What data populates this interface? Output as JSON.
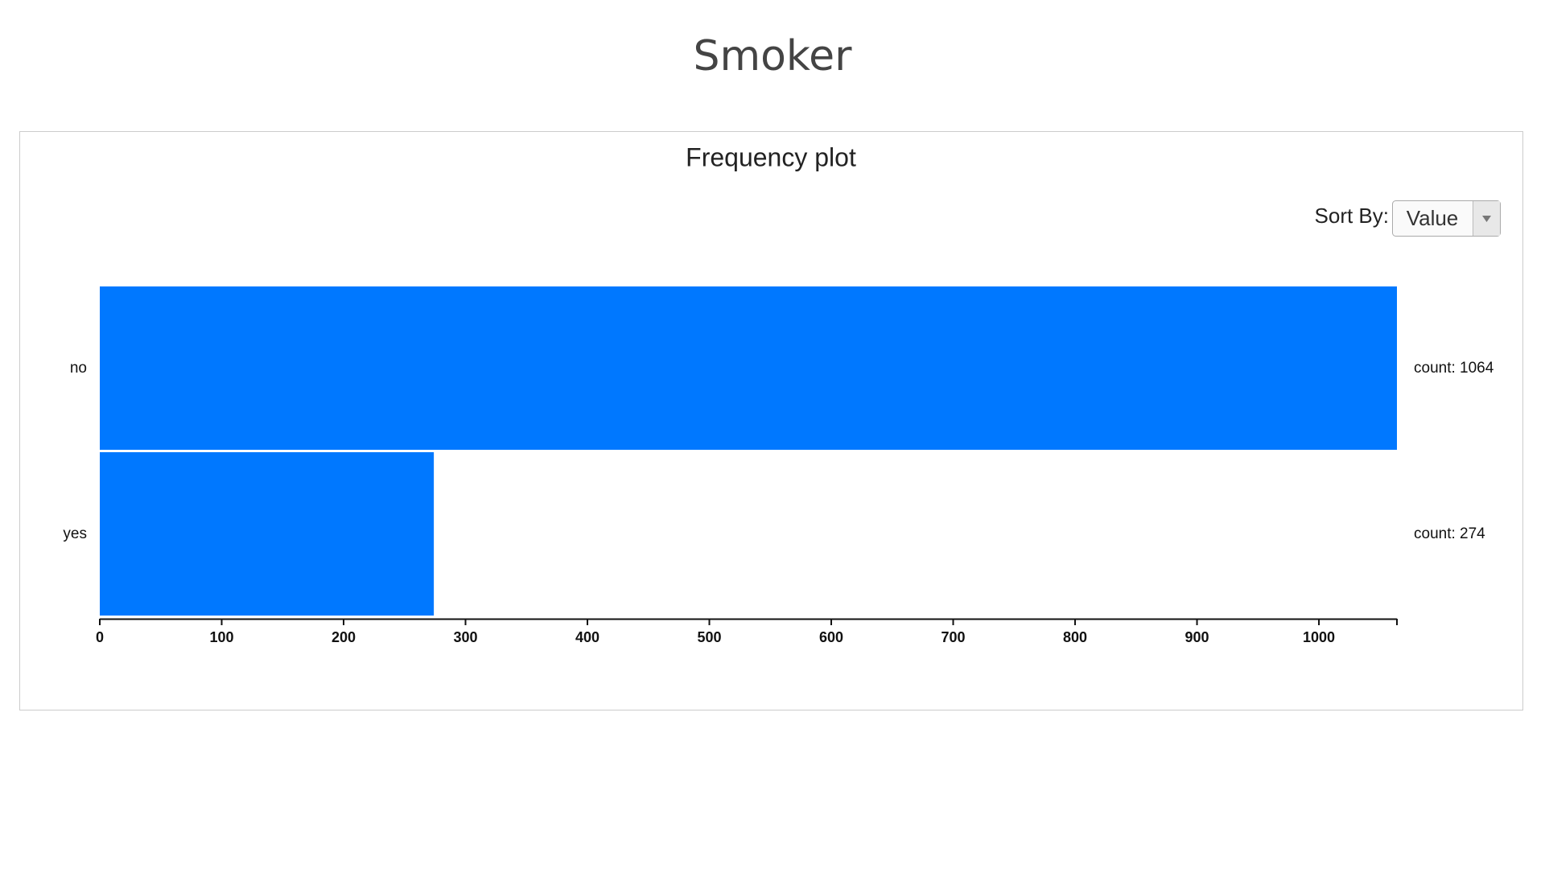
{
  "page_title": "Smoker",
  "controls": {
    "sort_label": "Sort By:",
    "sort_value": "Value"
  },
  "chart_data": {
    "type": "bar",
    "orientation": "horizontal",
    "title": "Frequency plot",
    "categories": [
      "no",
      "yes"
    ],
    "values": [
      1064,
      274
    ],
    "value_labels": [
      "count: 1064",
      "count: 274"
    ],
    "color": "#0078ff",
    "xlim": [
      0,
      1064
    ],
    "xticks": [
      0,
      100,
      200,
      300,
      400,
      500,
      600,
      700,
      800,
      900,
      1000
    ]
  }
}
